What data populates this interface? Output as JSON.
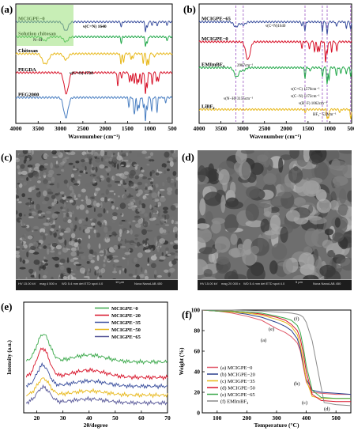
{
  "chart_data": [
    {
      "panel": "(a)",
      "type": "line",
      "xlabel": "Wavenumber (cm⁻¹)",
      "xlim": [
        4000,
        500
      ],
      "xticks": [
        4000,
        3500,
        3000,
        2500,
        2000,
        1500,
        1000,
        500
      ],
      "series": [
        {
          "name": "MCIGPE−0",
          "color": "#3a4f9e",
          "offset": 10.2,
          "peaks": [
            [
              2880,
              0.9
            ],
            [
              1640,
              0.5
            ],
            [
              1100,
              0.9
            ],
            [
              1060,
              0.6
            ],
            [
              950,
              0.3
            ],
            [
              840,
              0.4
            ],
            [
              620,
              0.3
            ]
          ]
        },
        {
          "name": "Solution chitosan",
          "color": "#22a84a",
          "offset": 8.7,
          "peaks": [
            [
              3350,
              0.4
            ],
            [
              2880,
              0.5
            ],
            [
              1640,
              0.6
            ],
            [
              1100,
              0.9
            ],
            [
              1060,
              0.7
            ],
            [
              620,
              0.4
            ]
          ]
        },
        {
          "name": "Chitosan",
          "color": "#e8b81a",
          "offset": 7.0,
          "peaks": [
            [
              3370,
              0.8
            ],
            [
              3290,
              0.6
            ],
            [
              2880,
              0.6
            ],
            [
              1650,
              1.0
            ],
            [
              1590,
              0.9
            ],
            [
              1420,
              0.5
            ],
            [
              1380,
              0.5
            ],
            [
              1150,
              0.9
            ],
            [
              1070,
              1.1
            ],
            [
              1030,
              1.1
            ],
            [
              900,
              0.4
            ]
          ]
        },
        {
          "name": "PEGDA",
          "color": "#d8142a",
          "offset": 5.1,
          "peaks": [
            [
              2870,
              2.1
            ],
            [
              1720,
              1.4
            ],
            [
              1635,
              0.5
            ],
            [
              1455,
              1.0
            ],
            [
              1405,
              0.8
            ],
            [
              1350,
              1.0
            ],
            [
              1290,
              1.1
            ],
            [
              1250,
              1.0
            ],
            [
              1190,
              1.1
            ],
            [
              1100,
              2.2
            ],
            [
              1060,
              1.4
            ],
            [
              950,
              1.2
            ],
            [
              850,
              0.8
            ],
            [
              810,
              0.9
            ]
          ]
        },
        {
          "name": "PEG2000",
          "color": "#4a7fc2",
          "offset": 2.6,
          "peaks": [
            [
              2880,
              2.0
            ],
            [
              1470,
              0.9
            ],
            [
              1360,
              1.1
            ],
            [
              1340,
              1.1
            ],
            [
              1280,
              1.3
            ],
            [
              1240,
              1.1
            ],
            [
              1145,
              1.0
            ],
            [
              1100,
              2.4
            ],
            [
              1060,
              1.1
            ],
            [
              960,
              1.4
            ],
            [
              840,
              1.4
            ],
            [
              650,
              0.5
            ]
          ]
        }
      ],
      "annotations": [
        "ν(C=N) 1640",
        "ν(C=O) 1720",
        "N−H"
      ]
    },
    {
      "panel": "(b)",
      "type": "line",
      "xlabel": "Wavenumber (cm⁻¹)",
      "xlim": [
        4000,
        500
      ],
      "xticks": [
        4000,
        3500,
        3000,
        2500,
        2000,
        1500,
        1000,
        500
      ],
      "series": [
        {
          "name": "MCIGPE−65",
          "color": "#3a4f9e",
          "offset": 10.2,
          "peaks": [
            [
              3155,
              0.5
            ],
            [
              2987,
              0.3
            ],
            [
              1640,
              0.4
            ],
            [
              1570,
              0.9
            ],
            [
              1172,
              0.9
            ],
            [
              1062,
              1.3
            ],
            [
              848,
              0.5
            ],
            [
              622,
              0.6
            ],
            [
              522,
              0.7
            ]
          ]
        },
        {
          "name": "MCIGPE−0",
          "color": "#d8142a",
          "offset": 8.2,
          "peaks": [
            [
              2880,
              1.8
            ],
            [
              1640,
              0.6
            ],
            [
              1470,
              0.8
            ],
            [
              1350,
              1.0
            ],
            [
              1280,
              1.0
            ],
            [
              1240,
              0.9
            ],
            [
              1100,
              2.0
            ],
            [
              1060,
              1.2
            ],
            [
              960,
              1.0
            ],
            [
              840,
              1.0
            ]
          ]
        },
        {
          "name": "EMImBF₄",
          "color": "#22a84a",
          "offset": 5.6,
          "peaks": [
            [
              3155,
              0.6
            ],
            [
              3120,
              0.4
            ],
            [
              2987,
              0.3
            ],
            [
              1570,
              1.0
            ],
            [
              1455,
              0.4
            ],
            [
              1170,
              0.9
            ],
            [
              1062,
              1.6
            ],
            [
              1020,
              1.2
            ],
            [
              848,
              0.8
            ],
            [
              750,
              0.6
            ],
            [
              622,
              0.7
            ],
            [
              522,
              0.8
            ]
          ]
        },
        {
          "name": "LiBF₄",
          "color": "#e8b81a",
          "offset": 1.4,
          "peaks": [
            [
              1570,
              0.3
            ],
            [
              1062,
              0.8
            ],
            [
              1030,
              0.9
            ],
            [
              770,
              0.3
            ],
            [
              522,
              0.9
            ]
          ]
        }
      ],
      "markers": [
        3155,
        2987,
        1570,
        1172,
        1062,
        522
      ],
      "annotations": [
        "2987cm⁻¹",
        "ν(C=N)1640",
        "ν(C=C) 1570cm⁻¹",
        "ν(C−N) 1172cm⁻¹",
        "ν(B−F) 1062cm⁻¹",
        "ν(N−H) 3155cm⁻¹",
        "BF₄⁻ 522cm⁻¹"
      ]
    },
    {
      "panel": "(e)",
      "type": "line",
      "xlabel": "2θ/degree",
      "ylabel": "Intensity (a.u.)",
      "xlim": [
        15,
        70
      ],
      "xticks": [
        20,
        30,
        40,
        50,
        60,
        70
      ],
      "ylim": [
        0,
        10
      ],
      "series": [
        {
          "name": "MCIGPE−0",
          "color": "#3aa84a",
          "base": 4.6,
          "peak": 2.5,
          "center": 22.5,
          "width": 3.5
        },
        {
          "name": "MCIGPE−20",
          "color": "#d8142a",
          "base": 3.2,
          "peak": 2.6,
          "center": 22.3,
          "width": 3.4
        },
        {
          "name": "MCIGPE−35",
          "color": "#3a4f9e",
          "base": 2.4,
          "peak": 1.9,
          "center": 22.3,
          "width": 3.2
        },
        {
          "name": "MCIGPE−50",
          "color": "#e8b81a",
          "base": 1.6,
          "peak": 1.5,
          "center": 22.5,
          "width": 3.3
        },
        {
          "name": "MCIGPE−65",
          "color": "#5a5a9a",
          "base": 0.9,
          "peak": 1.4,
          "center": 22.5,
          "width": 3.5
        }
      ]
    },
    {
      "panel": "(f)",
      "type": "line",
      "xlabel": "Temperature (°C)",
      "ylabel": "Weight (%)",
      "xlim": [
        50,
        550
      ],
      "xticks": [
        100,
        200,
        300,
        400,
        500
      ],
      "ylim": [
        0,
        100
      ],
      "yticks": [
        0,
        20,
        40,
        60,
        80,
        100
      ],
      "series": [
        {
          "name": "(a) MCIGPE−0",
          "color": "#e05a6a",
          "x": [
            50,
            100,
            150,
            200,
            250,
            300,
            330,
            350,
            370,
            380,
            390,
            400,
            420,
            450,
            500,
            550
          ],
          "y": [
            100,
            99,
            97,
            94,
            90,
            82,
            78,
            74,
            68,
            60,
            45,
            30,
            20,
            19,
            18,
            18
          ]
        },
        {
          "name": "(b) MCIGPE−20",
          "color": "#2a3f8e",
          "x": [
            50,
            100,
            150,
            200,
            250,
            300,
            330,
            350,
            370,
            380,
            390,
            400,
            420,
            450,
            500,
            550
          ],
          "y": [
            100,
            99,
            98,
            96,
            93,
            88,
            84,
            80,
            72,
            62,
            48,
            33,
            22,
            20,
            19,
            18
          ]
        },
        {
          "name": "(c) MCIGPE−35",
          "color": "#e8b81a",
          "x": [
            50,
            100,
            150,
            200,
            250,
            300,
            330,
            350,
            370,
            380,
            390,
            400,
            420,
            450,
            500,
            550
          ],
          "y": [
            100,
            99,
            98,
            97,
            95,
            91,
            88,
            84,
            76,
            66,
            50,
            32,
            16,
            14,
            14,
            14
          ]
        },
        {
          "name": "(d) MCIGPE−50",
          "color": "#d8142a",
          "x": [
            50,
            100,
            150,
            200,
            250,
            300,
            330,
            350,
            370,
            380,
            390,
            400,
            420,
            450,
            500,
            550
          ],
          "y": [
            100,
            99,
            99,
            98,
            96,
            93,
            90,
            86,
            80,
            72,
            58,
            40,
            18,
            12,
            11,
            11
          ]
        },
        {
          "name": "(e) MCIGPE−65",
          "color": "#3aa84a",
          "x": [
            50,
            100,
            150,
            200,
            250,
            300,
            330,
            350,
            370,
            380,
            390,
            400,
            420,
            450,
            500,
            550
          ],
          "y": [
            100,
            99,
            99,
            98,
            97,
            94,
            92,
            90,
            85,
            78,
            64,
            46,
            22,
            15,
            14,
            14
          ]
        },
        {
          "name": "(f) EMImBF₄",
          "color": "#8a8a8a",
          "x": [
            50,
            100,
            150,
            200,
            250,
            300,
            330,
            350,
            370,
            380,
            390,
            400,
            420,
            440,
            460,
            500,
            550
          ],
          "y": [
            100,
            100,
            100,
            99.5,
            99,
            98,
            97.5,
            97,
            96,
            95,
            93,
            88,
            70,
            40,
            10,
            8,
            7
          ]
        }
      ],
      "curve_labels": [
        "(a)",
        "(b)",
        "(c)",
        "(d)",
        "(e)",
        "(f)"
      ]
    }
  ],
  "panel_c": {
    "label": "(c)",
    "meta": [
      "HV 15.00 kV",
      "mag 4 500 x",
      "WD 5.4 mm",
      "det ETD",
      "spot 4.0",
      "10 μm",
      "Nova NanoLAB 450"
    ]
  },
  "panel_d": {
    "label": "(d)",
    "meta": [
      "HV 15.00 kV",
      "mag 20 000 x",
      "WD 5.4 mm",
      "det ETD",
      "spot 4.0",
      "5 μm",
      "Nova NanoLAB 450"
    ]
  }
}
